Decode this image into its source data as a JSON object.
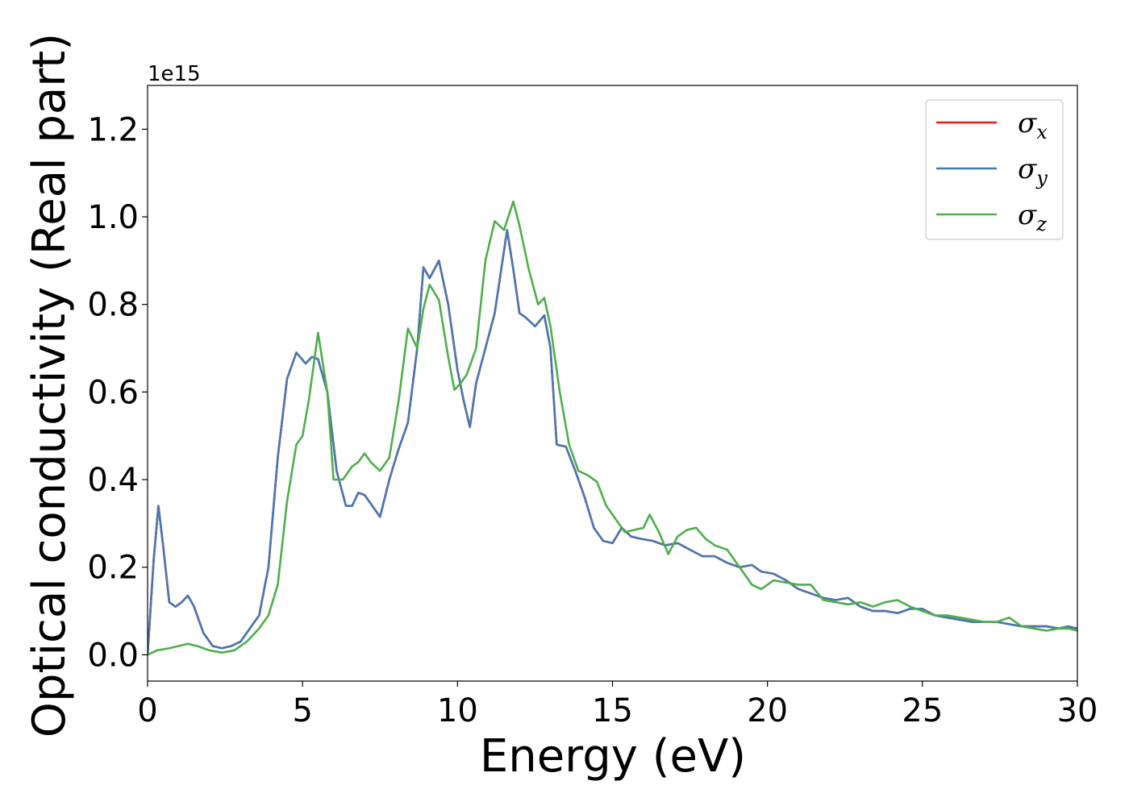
{
  "chart_data": {
    "type": "line",
    "title": "",
    "xlabel": "Energy (eV)",
    "ylabel": "Optical conductivity (Real part)",
    "y_offset_text": "1e15",
    "xlim": [
      0,
      30
    ],
    "ylim": [
      -0.06,
      1.3
    ],
    "x_ticks": [
      0,
      5,
      10,
      15,
      20,
      25,
      30
    ],
    "x_tick_labels": [
      "0",
      "5",
      "10",
      "15",
      "20",
      "25",
      "30"
    ],
    "y_ticks": [
      0.0,
      0.2,
      0.4,
      0.6,
      0.8,
      1.0,
      1.2
    ],
    "y_tick_labels": [
      "0.0",
      "0.2",
      "0.4",
      "0.6",
      "0.8",
      "1.0",
      "1.2"
    ],
    "grid": false,
    "legend_position": "top-right",
    "series": [
      {
        "name": "σ",
        "subscript": "x",
        "color": "#e41a1c",
        "x": [
          0,
          0.2,
          0.35,
          0.5,
          0.7,
          0.9,
          1.1,
          1.3,
          1.5,
          1.8,
          2.1,
          2.4,
          2.7,
          3.0,
          3.3,
          3.6,
          3.9,
          4.2,
          4.5,
          4.8,
          5.1,
          5.3,
          5.5,
          5.8,
          6.1,
          6.4,
          6.6,
          6.8,
          7.0,
          7.2,
          7.5,
          7.8,
          8.1,
          8.4,
          8.7,
          8.9,
          9.1,
          9.4,
          9.7,
          10.0,
          10.2,
          10.4,
          10.6,
          10.9,
          11.2,
          11.6,
          11.8,
          12.0,
          12.2,
          12.5,
          12.8,
          13.0,
          13.2,
          13.5,
          13.8,
          14.1,
          14.4,
          14.7,
          15.0,
          15.3,
          15.6,
          15.9,
          16.3,
          16.7,
          17.1,
          17.5,
          17.9,
          18.3,
          18.7,
          19.1,
          19.5,
          19.8,
          20.2,
          20.6,
          21.0,
          21.4,
          21.8,
          22.2,
          22.6,
          23.0,
          23.4,
          23.8,
          24.2,
          24.6,
          25.0,
          25.4,
          25.8,
          26.2,
          26.6,
          27.0,
          27.4,
          27.8,
          28.2,
          28.6,
          29.0,
          29.4,
          29.7,
          30.0
        ],
        "y": [
          0.0,
          0.22,
          0.34,
          0.25,
          0.12,
          0.11,
          0.12,
          0.135,
          0.11,
          0.05,
          0.02,
          0.015,
          0.02,
          0.03,
          0.06,
          0.09,
          0.2,
          0.45,
          0.63,
          0.69,
          0.665,
          0.68,
          0.675,
          0.6,
          0.42,
          0.34,
          0.34,
          0.37,
          0.365,
          0.345,
          0.315,
          0.4,
          0.47,
          0.53,
          0.7,
          0.885,
          0.86,
          0.9,
          0.8,
          0.65,
          0.58,
          0.52,
          0.62,
          0.7,
          0.78,
          0.97,
          0.88,
          0.78,
          0.77,
          0.75,
          0.775,
          0.7,
          0.48,
          0.475,
          0.42,
          0.36,
          0.29,
          0.26,
          0.255,
          0.29,
          0.27,
          0.265,
          0.26,
          0.25,
          0.255,
          0.24,
          0.225,
          0.225,
          0.21,
          0.2,
          0.205,
          0.19,
          0.185,
          0.17,
          0.15,
          0.14,
          0.13,
          0.125,
          0.13,
          0.11,
          0.1,
          0.1,
          0.095,
          0.105,
          0.105,
          0.09,
          0.085,
          0.08,
          0.075,
          0.075,
          0.075,
          0.07,
          0.065,
          0.065,
          0.065,
          0.06,
          0.065,
          0.06
        ]
      },
      {
        "name": "σ",
        "subscript": "y",
        "color": "#4878b4",
        "x": [
          0,
          0.2,
          0.35,
          0.5,
          0.7,
          0.9,
          1.1,
          1.3,
          1.5,
          1.8,
          2.1,
          2.4,
          2.7,
          3.0,
          3.3,
          3.6,
          3.9,
          4.2,
          4.5,
          4.8,
          5.1,
          5.3,
          5.5,
          5.8,
          6.1,
          6.4,
          6.6,
          6.8,
          7.0,
          7.2,
          7.5,
          7.8,
          8.1,
          8.4,
          8.7,
          8.9,
          9.1,
          9.4,
          9.7,
          10.0,
          10.2,
          10.4,
          10.6,
          10.9,
          11.2,
          11.6,
          11.8,
          12.0,
          12.2,
          12.5,
          12.8,
          13.0,
          13.2,
          13.5,
          13.8,
          14.1,
          14.4,
          14.7,
          15.0,
          15.3,
          15.6,
          15.9,
          16.3,
          16.7,
          17.1,
          17.5,
          17.9,
          18.3,
          18.7,
          19.1,
          19.5,
          19.8,
          20.2,
          20.6,
          21.0,
          21.4,
          21.8,
          22.2,
          22.6,
          23.0,
          23.4,
          23.8,
          24.2,
          24.6,
          25.0,
          25.4,
          25.8,
          26.2,
          26.6,
          27.0,
          27.4,
          27.8,
          28.2,
          28.6,
          29.0,
          29.4,
          29.7,
          30.0
        ],
        "y": [
          0.0,
          0.22,
          0.34,
          0.25,
          0.12,
          0.11,
          0.12,
          0.135,
          0.11,
          0.05,
          0.02,
          0.015,
          0.02,
          0.03,
          0.06,
          0.09,
          0.2,
          0.45,
          0.63,
          0.69,
          0.665,
          0.68,
          0.675,
          0.6,
          0.42,
          0.34,
          0.34,
          0.37,
          0.365,
          0.345,
          0.315,
          0.4,
          0.47,
          0.53,
          0.7,
          0.885,
          0.86,
          0.9,
          0.8,
          0.65,
          0.58,
          0.52,
          0.62,
          0.7,
          0.78,
          0.97,
          0.88,
          0.78,
          0.77,
          0.75,
          0.775,
          0.7,
          0.48,
          0.475,
          0.42,
          0.36,
          0.29,
          0.26,
          0.255,
          0.29,
          0.27,
          0.265,
          0.26,
          0.25,
          0.255,
          0.24,
          0.225,
          0.225,
          0.21,
          0.2,
          0.205,
          0.19,
          0.185,
          0.17,
          0.15,
          0.14,
          0.13,
          0.125,
          0.13,
          0.11,
          0.1,
          0.1,
          0.095,
          0.105,
          0.105,
          0.09,
          0.085,
          0.08,
          0.075,
          0.075,
          0.075,
          0.07,
          0.065,
          0.065,
          0.065,
          0.06,
          0.065,
          0.06
        ]
      },
      {
        "name": "σ",
        "subscript": "z",
        "color": "#4daf4a",
        "x": [
          0,
          0.3,
          0.7,
          1.0,
          1.3,
          1.6,
          2.0,
          2.4,
          2.8,
          3.2,
          3.6,
          3.9,
          4.2,
          4.5,
          4.8,
          5.0,
          5.2,
          5.5,
          5.8,
          6.0,
          6.3,
          6.6,
          6.8,
          7.0,
          7.2,
          7.5,
          7.8,
          8.1,
          8.4,
          8.7,
          8.9,
          9.1,
          9.4,
          9.7,
          9.9,
          10.1,
          10.3,
          10.6,
          10.9,
          11.2,
          11.5,
          11.8,
          12.0,
          12.3,
          12.6,
          12.8,
          13.0,
          13.3,
          13.6,
          13.9,
          14.2,
          14.5,
          14.8,
          15.1,
          15.4,
          15.7,
          16.0,
          16.2,
          16.5,
          16.8,
          17.1,
          17.4,
          17.7,
          18.0,
          18.3,
          18.7,
          19.1,
          19.5,
          19.8,
          20.2,
          20.6,
          21.0,
          21.4,
          21.8,
          22.2,
          22.6,
          23.0,
          23.4,
          23.8,
          24.2,
          24.6,
          25.0,
          25.4,
          25.8,
          26.2,
          26.6,
          27.0,
          27.4,
          27.8,
          28.2,
          28.6,
          29.0,
          29.4,
          29.7,
          30.0
        ],
        "y": [
          0.0,
          0.01,
          0.015,
          0.02,
          0.025,
          0.02,
          0.01,
          0.005,
          0.01,
          0.03,
          0.06,
          0.09,
          0.16,
          0.35,
          0.48,
          0.5,
          0.58,
          0.735,
          0.6,
          0.4,
          0.4,
          0.43,
          0.44,
          0.46,
          0.44,
          0.42,
          0.45,
          0.58,
          0.745,
          0.7,
          0.79,
          0.845,
          0.81,
          0.68,
          0.605,
          0.62,
          0.64,
          0.7,
          0.9,
          0.99,
          0.97,
          1.035,
          0.98,
          0.88,
          0.8,
          0.815,
          0.75,
          0.6,
          0.48,
          0.42,
          0.41,
          0.395,
          0.34,
          0.31,
          0.28,
          0.285,
          0.29,
          0.32,
          0.28,
          0.23,
          0.27,
          0.285,
          0.29,
          0.265,
          0.25,
          0.24,
          0.2,
          0.16,
          0.15,
          0.17,
          0.165,
          0.16,
          0.16,
          0.125,
          0.12,
          0.115,
          0.12,
          0.11,
          0.12,
          0.125,
          0.11,
          0.1,
          0.09,
          0.09,
          0.085,
          0.08,
          0.075,
          0.075,
          0.085,
          0.065,
          0.06,
          0.055,
          0.06,
          0.06,
          0.055
        ]
      }
    ]
  }
}
